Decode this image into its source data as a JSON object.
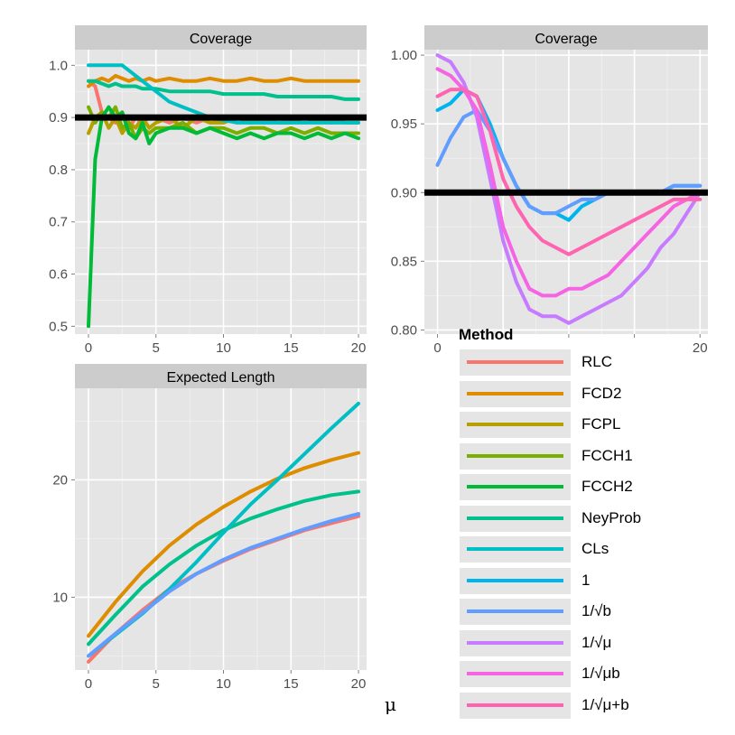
{
  "colors": {
    "panel_bg": "#e5e5e5",
    "grid_major": "#ffffff",
    "grid_minor": "#f2f2f2",
    "strip_bg": "#cccccc",
    "reference_line": "#000000",
    "axis_text": "#4d4d4d"
  },
  "axes": {
    "x_label": "μ"
  },
  "legend": {
    "title": "Method",
    "entries": [
      {
        "label": "RLC",
        "color": "#F8766D"
      },
      {
        "label": "FCD2",
        "color": "#DE8C00"
      },
      {
        "label": "FCPL",
        "color": "#B79F00"
      },
      {
        "label": "FCCH1",
        "color": "#7CAE00"
      },
      {
        "label": "FCCH2",
        "color": "#00BA38"
      },
      {
        "label": "NeyProb",
        "color": "#00C08B"
      },
      {
        "label": "CLs",
        "color": "#00BFC4"
      },
      {
        "label": "1",
        "color": "#00B4F0"
      },
      {
        "label": "1/√b",
        "color": "#619CFF"
      },
      {
        "label": "1/√μ",
        "color": "#C77CFF"
      },
      {
        "label": "1/√μb",
        "color": "#F564E3"
      },
      {
        "label": "1/√μ+b",
        "color": "#FF64B0"
      }
    ]
  },
  "chart_data": [
    {
      "type": "line",
      "title": "Coverage",
      "panel": "top-left",
      "xlabel": "μ",
      "ylabel": "",
      "xlim": [
        -1,
        20.6
      ],
      "ylim": [
        0.485,
        1.03
      ],
      "x_ticks": [
        0,
        5,
        10,
        15,
        20
      ],
      "y_ticks": [
        0.5,
        0.6,
        0.7,
        0.8,
        0.9,
        1.0
      ],
      "y_tick_labels": [
        "0.5",
        "0.6",
        "0.7",
        "0.8",
        "0.9",
        "1.0"
      ],
      "reference_line": 0.9,
      "x": [
        0,
        0.5,
        1,
        1.5,
        2,
        2.5,
        3,
        3.5,
        4,
        4.5,
        5,
        6,
        7,
        8,
        9,
        10,
        11,
        12,
        13,
        14,
        15,
        16,
        17,
        18,
        19,
        20
      ],
      "series": [
        {
          "name": "RLC",
          "values": [
            0.97,
            0.96,
            0.91,
            0.9,
            0.89,
            0.91,
            0.88,
            0.9,
            0.89,
            0.9,
            0.9,
            0.89,
            0.9,
            0.89,
            0.9,
            0.89,
            0.9,
            0.9,
            0.89,
            0.9,
            0.89,
            0.9,
            0.9,
            0.89,
            0.9,
            0.9
          ]
        },
        {
          "name": "FCD2",
          "values": [
            0.96,
            0.97,
            0.975,
            0.97,
            0.98,
            0.975,
            0.97,
            0.975,
            0.97,
            0.975,
            0.97,
            0.975,
            0.97,
            0.97,
            0.975,
            0.97,
            0.97,
            0.975,
            0.97,
            0.97,
            0.975,
            0.97,
            0.97,
            0.97,
            0.97,
            0.97
          ]
        },
        {
          "name": "FCPL",
          "values": [
            0.87,
            0.9,
            0.91,
            0.88,
            0.9,
            0.87,
            0.89,
            0.88,
            0.9,
            0.88,
            0.89,
            0.9,
            0.88,
            0.9,
            0.89,
            0.89,
            0.9,
            0.89,
            0.9,
            0.89,
            0.89,
            0.9,
            0.89,
            0.9,
            0.89,
            0.89
          ]
        },
        {
          "name": "FCCH1",
          "values": [
            0.92,
            0.89,
            0.91,
            0.9,
            0.92,
            0.88,
            0.89,
            0.86,
            0.88,
            0.87,
            0.88,
            0.88,
            0.89,
            0.87,
            0.88,
            0.88,
            0.87,
            0.88,
            0.88,
            0.87,
            0.88,
            0.87,
            0.88,
            0.87,
            0.87,
            0.87
          ]
        },
        {
          "name": "FCCH2",
          "values": [
            0.5,
            0.82,
            0.9,
            0.92,
            0.9,
            0.91,
            0.87,
            0.86,
            0.89,
            0.85,
            0.87,
            0.88,
            0.88,
            0.87,
            0.88,
            0.87,
            0.86,
            0.87,
            0.86,
            0.87,
            0.87,
            0.86,
            0.87,
            0.86,
            0.87,
            0.86
          ]
        },
        {
          "name": "NeyProb",
          "values": [
            0.97,
            0.97,
            0.965,
            0.96,
            0.965,
            0.96,
            0.96,
            0.96,
            0.955,
            0.955,
            0.955,
            0.95,
            0.95,
            0.95,
            0.95,
            0.945,
            0.945,
            0.945,
            0.945,
            0.94,
            0.94,
            0.94,
            0.94,
            0.94,
            0.935,
            0.935
          ]
        },
        {
          "name": "CLs",
          "values": [
            1.0,
            1.0,
            1.0,
            1.0,
            1.0,
            1.0,
            0.99,
            0.98,
            0.97,
            0.96,
            0.95,
            0.93,
            0.92,
            0.91,
            0.9,
            0.895,
            0.89,
            0.89,
            0.89,
            0.89,
            0.89,
            0.89,
            0.89,
            0.89,
            0.89,
            0.89
          ]
        }
      ]
    },
    {
      "type": "line",
      "title": "Coverage",
      "panel": "top-right",
      "xlabel": "μ",
      "ylabel": "",
      "xlim": [
        -1,
        20.6
      ],
      "ylim": [
        0.797,
        1.004
      ],
      "x_ticks": [
        0,
        5,
        10,
        15,
        20
      ],
      "x_tick_labels_visible": [
        "0",
        "20"
      ],
      "y_ticks": [
        0.8,
        0.85,
        0.9,
        0.95,
        1.0
      ],
      "y_tick_labels": [
        "0.80",
        "0.85",
        "0.90",
        "0.95",
        "1.00"
      ],
      "reference_line": 0.9,
      "x": [
        0,
        1,
        2,
        3,
        4,
        5,
        6,
        7,
        8,
        9,
        10,
        11,
        12,
        13,
        14,
        15,
        16,
        17,
        18,
        19,
        20
      ],
      "series": [
        {
          "name": "1",
          "values": [
            0.96,
            0.965,
            0.975,
            0.97,
            0.95,
            0.925,
            0.905,
            0.89,
            0.885,
            0.885,
            0.88,
            0.89,
            0.895,
            0.9,
            0.9,
            0.9,
            0.9,
            0.9,
            0.905,
            0.905,
            0.905
          ]
        },
        {
          "name": "1/√b",
          "values": [
            0.92,
            0.94,
            0.955,
            0.96,
            0.945,
            0.925,
            0.905,
            0.89,
            0.885,
            0.885,
            0.89,
            0.895,
            0.895,
            0.9,
            0.9,
            0.9,
            0.9,
            0.9,
            0.905,
            0.905,
            0.905
          ]
        },
        {
          "name": "1/√μ",
          "values": [
            1.0,
            0.995,
            0.98,
            0.955,
            0.91,
            0.865,
            0.835,
            0.815,
            0.81,
            0.81,
            0.805,
            0.81,
            0.815,
            0.82,
            0.825,
            0.835,
            0.845,
            0.86,
            0.87,
            0.885,
            0.9
          ]
        },
        {
          "name": "1/√μb",
          "values": [
            0.99,
            0.985,
            0.975,
            0.96,
            0.92,
            0.875,
            0.85,
            0.83,
            0.825,
            0.825,
            0.83,
            0.83,
            0.835,
            0.84,
            0.85,
            0.86,
            0.87,
            0.88,
            0.89,
            0.895,
            0.9
          ]
        },
        {
          "name": "1/√μ+b",
          "values": [
            0.97,
            0.975,
            0.975,
            0.97,
            0.945,
            0.91,
            0.89,
            0.875,
            0.865,
            0.86,
            0.855,
            0.86,
            0.865,
            0.87,
            0.875,
            0.88,
            0.885,
            0.89,
            0.895,
            0.895,
            0.895
          ]
        }
      ]
    },
    {
      "type": "line",
      "title": "Expected Length",
      "panel": "bottom-left",
      "xlabel": "μ",
      "ylabel": "",
      "xlim": [
        -1,
        20.6
      ],
      "ylim": [
        3.8,
        27.8
      ],
      "x_ticks": [
        0,
        5,
        10,
        15,
        20
      ],
      "y_ticks": [
        10,
        20
      ],
      "y_tick_labels": [
        "10",
        "20"
      ],
      "x": [
        0,
        2,
        4,
        6,
        8,
        10,
        12,
        14,
        16,
        18,
        20
      ],
      "series": [
        {
          "name": "RLC",
          "values": [
            4.5,
            6.9,
            8.9,
            10.7,
            12.0,
            13.1,
            14.1,
            14.9,
            15.7,
            16.3,
            16.9
          ]
        },
        {
          "name": "FCD2",
          "values": [
            6.7,
            9.6,
            12.2,
            14.4,
            16.2,
            17.7,
            19.0,
            20.1,
            21.0,
            21.7,
            22.3
          ]
        },
        {
          "name": "NeyProb",
          "values": [
            6.0,
            8.5,
            10.9,
            12.8,
            14.4,
            15.7,
            16.7,
            17.5,
            18.2,
            18.7,
            19.0
          ]
        },
        {
          "name": "CLs",
          "values": [
            5.0,
            6.8,
            8.6,
            10.7,
            13.0,
            15.5,
            17.9,
            20.0,
            22.2,
            24.4,
            26.5
          ]
        },
        {
          "name": "1/√b",
          "values": [
            5.0,
            6.9,
            8.7,
            10.5,
            12.0,
            13.2,
            14.2,
            15.0,
            15.8,
            16.5,
            17.1
          ]
        }
      ]
    }
  ]
}
